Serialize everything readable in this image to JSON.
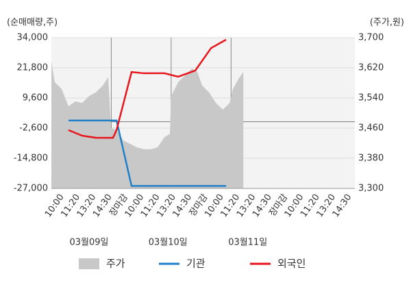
{
  "chart_data": {
    "type": "combo",
    "y_axis_label": "(순매매량,주)",
    "y2_axis_label": "(주가,원)",
    "xlim": [
      0,
      19
    ],
    "xticks": [
      {
        "value": 0.5,
        "label": "10:00"
      },
      {
        "value": 1.5,
        "label": "11:20"
      },
      {
        "value": 2.5,
        "label": "13:20"
      },
      {
        "value": 3.5,
        "label": "14:30"
      },
      {
        "value": 4.5,
        "label": "장마감",
        "color": "#e8141c"
      },
      {
        "value": 5.5,
        "label": "10:00"
      },
      {
        "value": 6.5,
        "label": "11:20"
      },
      {
        "value": 7.5,
        "label": "13:20"
      },
      {
        "value": 8.5,
        "label": "14:30"
      },
      {
        "value": 9.5,
        "label": "장마감",
        "color": "#e8141c"
      },
      {
        "value": 10.5,
        "label": "10:00"
      },
      {
        "value": 11.5,
        "label": "11:20"
      },
      {
        "value": 12.5,
        "label": "13:20"
      },
      {
        "value": 13.5,
        "label": "14:30"
      },
      {
        "value": 14.5,
        "label": "장마감",
        "color": "#e8141c"
      },
      {
        "value": 15.5,
        "label": "10:00",
        "color": "#000000"
      },
      {
        "value": 16.5,
        "label": "11:20"
      },
      {
        "value": 17.5,
        "label": "13:20"
      },
      {
        "value": 18.5,
        "label": "14:30"
      }
    ],
    "xgrid": [
      3.75,
      7.5,
      11.25
    ],
    "dates": [
      {
        "value": 2.36,
        "label": "03월09일"
      },
      {
        "value": 7.3,
        "label": "03월10일"
      },
      {
        "value": 12.3,
        "label": "03월11일"
      }
    ],
    "ylim": [
      -27000,
      34000
    ],
    "yticks": [
      {
        "value": 34000,
        "label": "34,000"
      },
      {
        "value": 21800,
        "label": "21,800"
      },
      {
        "value": 9600,
        "label": "9,600"
      },
      {
        "value": -2600,
        "label": "-2,600"
      },
      {
        "value": -14800,
        "label": "-14,800"
      },
      {
        "value": -27000,
        "label": "-27,000"
      }
    ],
    "y2lim": [
      3300,
      3700
    ],
    "y2ticks": [
      {
        "value": 3700,
        "label": "3,700"
      },
      {
        "value": 3620,
        "label": "3,620"
      },
      {
        "value": 3540,
        "label": "3,540"
      },
      {
        "value": 3460,
        "label": "3,460"
      },
      {
        "value": 3380,
        "label": "3,380"
      },
      {
        "value": 3300,
        "label": "3,300"
      }
    ],
    "grid": true,
    "series": [
      {
        "name": "주가",
        "type": "area",
        "axis": "y2",
        "color": "#c8c8c8",
        "x": [
          0,
          0.21,
          0.64,
          1.07,
          1.5,
          1.93,
          2.36,
          2.79,
          3.22,
          3.56,
          3.73,
          4.08,
          4.51,
          4.94,
          5.36,
          5.79,
          6.22,
          6.65,
          7.08,
          7.42,
          7.5,
          7.94,
          8.37,
          8.8,
          9.14,
          9.44,
          9.87,
          10.3,
          10.73,
          11.16,
          11.37,
          11.72,
          12.02
        ],
        "values": [
          3636,
          3582,
          3564,
          3518,
          3531,
          3527,
          3545,
          3555,
          3573,
          3596,
          3460,
          3455,
          3427,
          3418,
          3409,
          3404,
          3404,
          3409,
          3436,
          3445,
          3545,
          3582,
          3600,
          3618,
          3609,
          3573,
          3555,
          3527,
          3509,
          3527,
          3564,
          3591,
          3609
        ]
      },
      {
        "name": "기관",
        "type": "line",
        "color": "#1f7fc8",
        "x": [
          1.07,
          3.86,
          4.08,
          5.02,
          10.94
        ],
        "values": [
          500,
          500,
          500,
          -26000,
          -26000
        ]
      },
      {
        "name": "외국인",
        "type": "line",
        "color": "#e8141c",
        "x": [
          1.07,
          1.93,
          2.79,
          3.86,
          4.08,
          5.02,
          5.79,
          7.08,
          7.94,
          9.01,
          10.0,
          10.94
        ],
        "values": [
          -3400,
          -5650,
          -6500,
          -6500,
          -3400,
          20100,
          19600,
          19600,
          18200,
          20700,
          29800,
          33200
        ]
      }
    ]
  }
}
